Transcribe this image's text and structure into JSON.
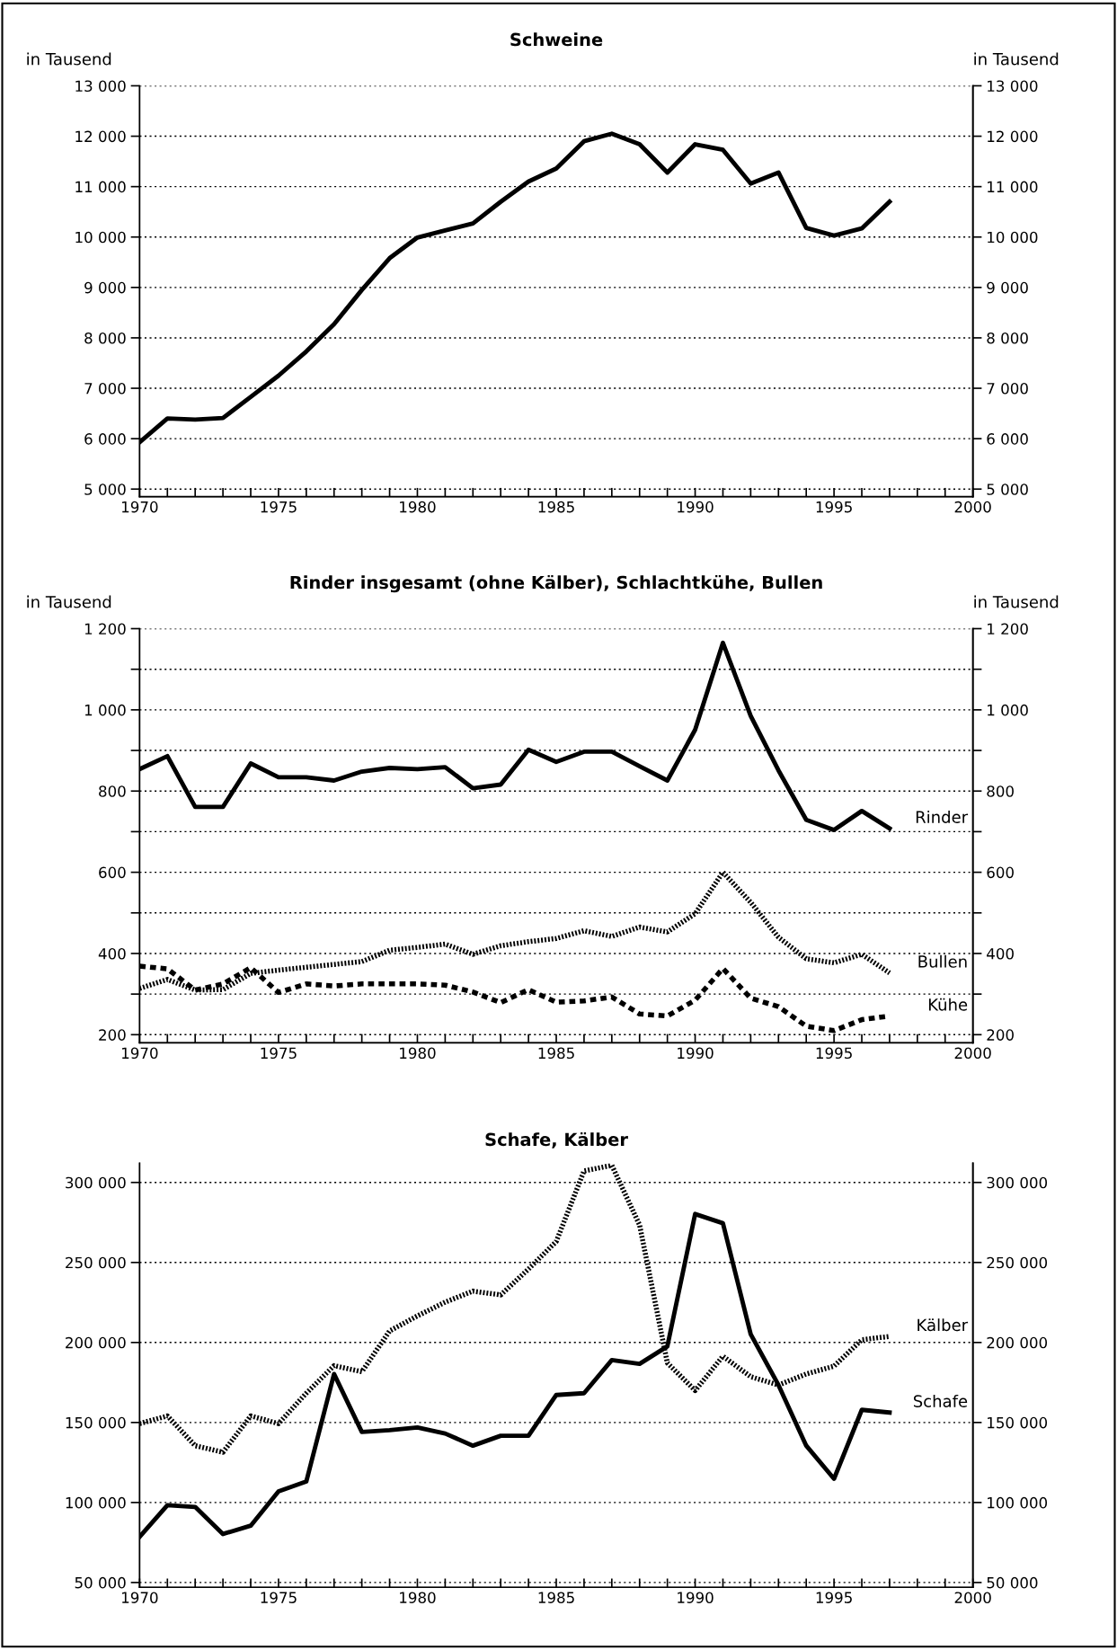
{
  "chart_data": [
    {
      "type": "line",
      "title": "Schweine",
      "ylabel": "in Tausend",
      "y2label": "in Tausend",
      "x": [
        1970,
        1971,
        1972,
        1973,
        1974,
        1975,
        1976,
        1977,
        1978,
        1979,
        1980,
        1981,
        1982,
        1983,
        1984,
        1985,
        1986,
        1987,
        1988,
        1989,
        1990,
        1991,
        1992,
        1993,
        1994,
        1995,
        1996,
        1997
      ],
      "series": [
        {
          "color": "#000000",
          "line_style": "solid",
          "values": [
            5930,
            6400,
            6380,
            6410,
            6830,
            7250,
            7730,
            8270,
            8950,
            9580,
            9990,
            10130,
            10270,
            10700,
            11100,
            11360,
            11900,
            12050,
            11840,
            11280,
            11840,
            11730,
            11060,
            11280,
            10180,
            10030,
            10170,
            10700
          ]
        }
      ],
      "xlim": [
        1970,
        2000
      ],
      "xticks": [
        1970,
        {
          "value": 1971,
          "label": null
        },
        {
          "value": 1972,
          "label": null
        },
        {
          "value": 1973,
          "label": null
        },
        {
          "value": 1974,
          "label": null
        },
        1975,
        {
          "value": 1976,
          "label": null
        },
        {
          "value": 1977,
          "label": null
        },
        {
          "value": 1978,
          "label": null
        },
        {
          "value": 1979,
          "label": null
        },
        1980,
        {
          "value": 1981,
          "label": null
        },
        {
          "value": 1982,
          "label": null
        },
        {
          "value": 1983,
          "label": null
        },
        {
          "value": 1984,
          "label": null
        },
        1985,
        {
          "value": 1986,
          "label": null
        },
        {
          "value": 1987,
          "label": null
        },
        {
          "value": 1988,
          "label": null
        },
        {
          "value": 1989,
          "label": null
        },
        1990,
        {
          "value": 1991,
          "label": null
        },
        {
          "value": 1992,
          "label": null
        },
        {
          "value": 1993,
          "label": null
        },
        {
          "value": 1994,
          "label": null
        },
        1995,
        {
          "value": 1996,
          "label": null
        },
        {
          "value": 1997,
          "label": null
        },
        {
          "value": 1998,
          "label": null
        },
        {
          "value": 1999,
          "label": null
        },
        2000
      ],
      "ylim": [
        4850,
        13000
      ],
      "yticks": [
        {
          "value": 5000,
          "label": "5 000"
        },
        {
          "value": 6000,
          "label": "6 000"
        },
        {
          "value": 7000,
          "label": "7 000"
        },
        {
          "value": 8000,
          "label": "8 000"
        },
        {
          "value": 9000,
          "label": "9 000"
        },
        {
          "value": 10000,
          "label": "10 000"
        },
        {
          "value": 11000,
          "label": "11 000"
        },
        {
          "value": 12000,
          "label": "12 000"
        },
        {
          "value": 13000,
          "label": "13 000"
        }
      ],
      "y2lim": [
        4850,
        13000
      ],
      "y2ticks": [
        {
          "value": 5000,
          "label": "5 000"
        },
        {
          "value": 6000,
          "label": "6 000"
        },
        {
          "value": 7000,
          "label": "7 000"
        },
        {
          "value": 8000,
          "label": "8 000"
        },
        {
          "value": 9000,
          "label": "9 000"
        },
        {
          "value": 10000,
          "label": "10 000"
        },
        {
          "value": 11000,
          "label": "11 000"
        },
        {
          "value": 12000,
          "label": "12 000"
        },
        {
          "value": 13000,
          "label": "13 000"
        }
      ],
      "grid": "y",
      "legend": false,
      "marker": "none"
    },
    {
      "type": "line",
      "title": "Rinder insgesamt (ohne Kälber), Schlachtkühe, Bullen",
      "ylabel": "in Tausend",
      "y2label": "in Tausend",
      "x": [
        1970,
        1971,
        1972,
        1973,
        1974,
        1975,
        1976,
        1977,
        1978,
        1979,
        1980,
        1981,
        1982,
        1983,
        1984,
        1985,
        1986,
        1987,
        1988,
        1989,
        1990,
        1991,
        1992,
        1993,
        1994,
        1995,
        1996,
        1997
      ],
      "series": [
        {
          "name": "Rinder",
          "color": "#000000",
          "line_style": "solid",
          "values": [
            854,
            886,
            761,
            761,
            868,
            834,
            834,
            826,
            848,
            857,
            854,
            859,
            807,
            816,
            902,
            872,
            897,
            897,
            861,
            826,
            951,
            1165,
            985,
            851,
            729,
            704,
            751,
            708
          ]
        },
        {
          "name": "Bullen",
          "color": "#000000",
          "line_style": "dotted",
          "values": [
            314,
            336,
            310,
            311,
            351,
            359,
            366,
            373,
            380,
            408,
            415,
            423,
            398,
            419,
            429,
            437,
            456,
            442,
            465,
            453,
            498,
            600,
            526,
            440,
            387,
            377,
            398,
            352
          ]
        },
        {
          "name": "Kühe",
          "color": "#000000",
          "line_style": "dashed",
          "values": [
            369,
            362,
            310,
            325,
            365,
            304,
            325,
            320,
            325,
            325,
            325,
            322,
            305,
            279,
            311,
            280,
            283,
            293,
            251,
            246,
            285,
            363,
            290,
            269,
            221,
            210,
            237,
            246
          ]
        }
      ],
      "xlim": [
        1970,
        2000
      ],
      "xticks": [
        1970,
        {
          "value": 1971,
          "label": null
        },
        {
          "value": 1972,
          "label": null
        },
        {
          "value": 1973,
          "label": null
        },
        {
          "value": 1974,
          "label": null
        },
        1975,
        {
          "value": 1976,
          "label": null
        },
        {
          "value": 1977,
          "label": null
        },
        {
          "value": 1978,
          "label": null
        },
        {
          "value": 1979,
          "label": null
        },
        1980,
        {
          "value": 1981,
          "label": null
        },
        {
          "value": 1982,
          "label": null
        },
        {
          "value": 1983,
          "label": null
        },
        {
          "value": 1984,
          "label": null
        },
        1985,
        {
          "value": 1986,
          "label": null
        },
        {
          "value": 1987,
          "label": null
        },
        {
          "value": 1988,
          "label": null
        },
        {
          "value": 1989,
          "label": null
        },
        1990,
        {
          "value": 1991,
          "label": null
        },
        {
          "value": 1992,
          "label": null
        },
        {
          "value": 1993,
          "label": null
        },
        {
          "value": 1994,
          "label": null
        },
        1995,
        {
          "value": 1996,
          "label": null
        },
        {
          "value": 1997,
          "label": null
        },
        {
          "value": 1998,
          "label": null
        },
        {
          "value": 1999,
          "label": null
        },
        2000
      ],
      "ylim": [
        180,
        1200
      ],
      "yticks": [
        200,
        {
          "value": 300,
          "label": null
        },
        400,
        {
          "value": 500,
          "label": null
        },
        600,
        {
          "value": 700,
          "label": null
        },
        800,
        {
          "value": 900,
          "label": null
        },
        {
          "value": 1000,
          "label": "1 000"
        },
        {
          "value": 1100,
          "label": null
        },
        {
          "value": 1200,
          "label": "1 200"
        }
      ],
      "y2lim": [
        180,
        1200
      ],
      "y2ticks": [
        200,
        {
          "value": 300,
          "label": null
        },
        400,
        {
          "value": 500,
          "label": null
        },
        600,
        {
          "value": 700,
          "label": null
        },
        800,
        {
          "value": 900,
          "label": null
        },
        {
          "value": 1000,
          "label": "1 000"
        },
        {
          "value": 1100,
          "label": null
        },
        {
          "value": 1200,
          "label": "1 200"
        }
      ],
      "grid": "y",
      "legend": false,
      "marker": "none"
    },
    {
      "type": "line",
      "title": "Schafe, Kälber",
      "x": [
        1970,
        1971,
        1972,
        1973,
        1974,
        1975,
        1976,
        1977,
        1978,
        1979,
        1980,
        1981,
        1982,
        1983,
        1984,
        1985,
        1986,
        1987,
        1988,
        1989,
        1990,
        1991,
        1992,
        1993,
        1994,
        1995,
        1996,
        1997
      ],
      "series": [
        {
          "name": "Kälber",
          "color": "#000000",
          "line_style": "dotted",
          "values": [
            149300,
            154100,
            135500,
            131400,
            154100,
            149300,
            168300,
            185500,
            181700,
            207200,
            216600,
            225200,
            232100,
            229700,
            245900,
            263100,
            307200,
            310700,
            273400,
            187200,
            170000,
            191400,
            178600,
            173400,
            180300,
            185200,
            201700,
            203800
          ]
        },
        {
          "name": "Schafe",
          "color": "#000000",
          "line_style": "solid",
          "values": [
            78600,
            98300,
            97200,
            80300,
            85500,
            106900,
            113100,
            180300,
            144100,
            145200,
            146900,
            143100,
            135500,
            141700,
            141700,
            167200,
            168300,
            189000,
            186600,
            197600,
            280300,
            274500,
            205200,
            173400,
            135500,
            114800,
            157900,
            156200
          ]
        }
      ],
      "xlim": [
        1970,
        2000
      ],
      "xticks": [
        1970,
        {
          "value": 1971,
          "label": null
        },
        {
          "value": 1972,
          "label": null
        },
        {
          "value": 1973,
          "label": null
        },
        {
          "value": 1974,
          "label": null
        },
        1975,
        {
          "value": 1976,
          "label": null
        },
        {
          "value": 1977,
          "label": null
        },
        {
          "value": 1978,
          "label": null
        },
        {
          "value": 1979,
          "label": null
        },
        1980,
        {
          "value": 1981,
          "label": null
        },
        {
          "value": 1982,
          "label": null
        },
        {
          "value": 1983,
          "label": null
        },
        {
          "value": 1984,
          "label": null
        },
        1985,
        {
          "value": 1986,
          "label": null
        },
        {
          "value": 1987,
          "label": null
        },
        {
          "value": 1988,
          "label": null
        },
        {
          "value": 1989,
          "label": null
        },
        1990,
        {
          "value": 1991,
          "label": null
        },
        {
          "value": 1992,
          "label": null
        },
        {
          "value": 1993,
          "label": null
        },
        {
          "value": 1994,
          "label": null
        },
        1995,
        {
          "value": 1996,
          "label": null
        },
        {
          "value": 1997,
          "label": null
        },
        {
          "value": 1998,
          "label": null
        },
        {
          "value": 1999,
          "label": null
        },
        2000
      ],
      "ylim": [
        47000,
        312000
      ],
      "yticks": [
        {
          "value": 50000,
          "label": "50 000"
        },
        {
          "value": 100000,
          "label": "100 000"
        },
        {
          "value": 150000,
          "label": "150 000"
        },
        {
          "value": 200000,
          "label": "200 000"
        },
        {
          "value": 250000,
          "label": "250 000"
        },
        {
          "value": 300000,
          "label": "300 000"
        }
      ],
      "y2lim": [
        47000,
        312000
      ],
      "y2ticks": [
        {
          "value": 50000,
          "label": "50 000"
        },
        {
          "value": 100000,
          "label": "100 000"
        },
        {
          "value": 150000,
          "label": "150 000"
        },
        {
          "value": 200000,
          "label": "200 000"
        },
        {
          "value": 250000,
          "label": "250 000"
        },
        {
          "value": 300000,
          "label": "300 000"
        }
      ],
      "grid": "y",
      "legend": false,
      "marker": "none"
    }
  ]
}
